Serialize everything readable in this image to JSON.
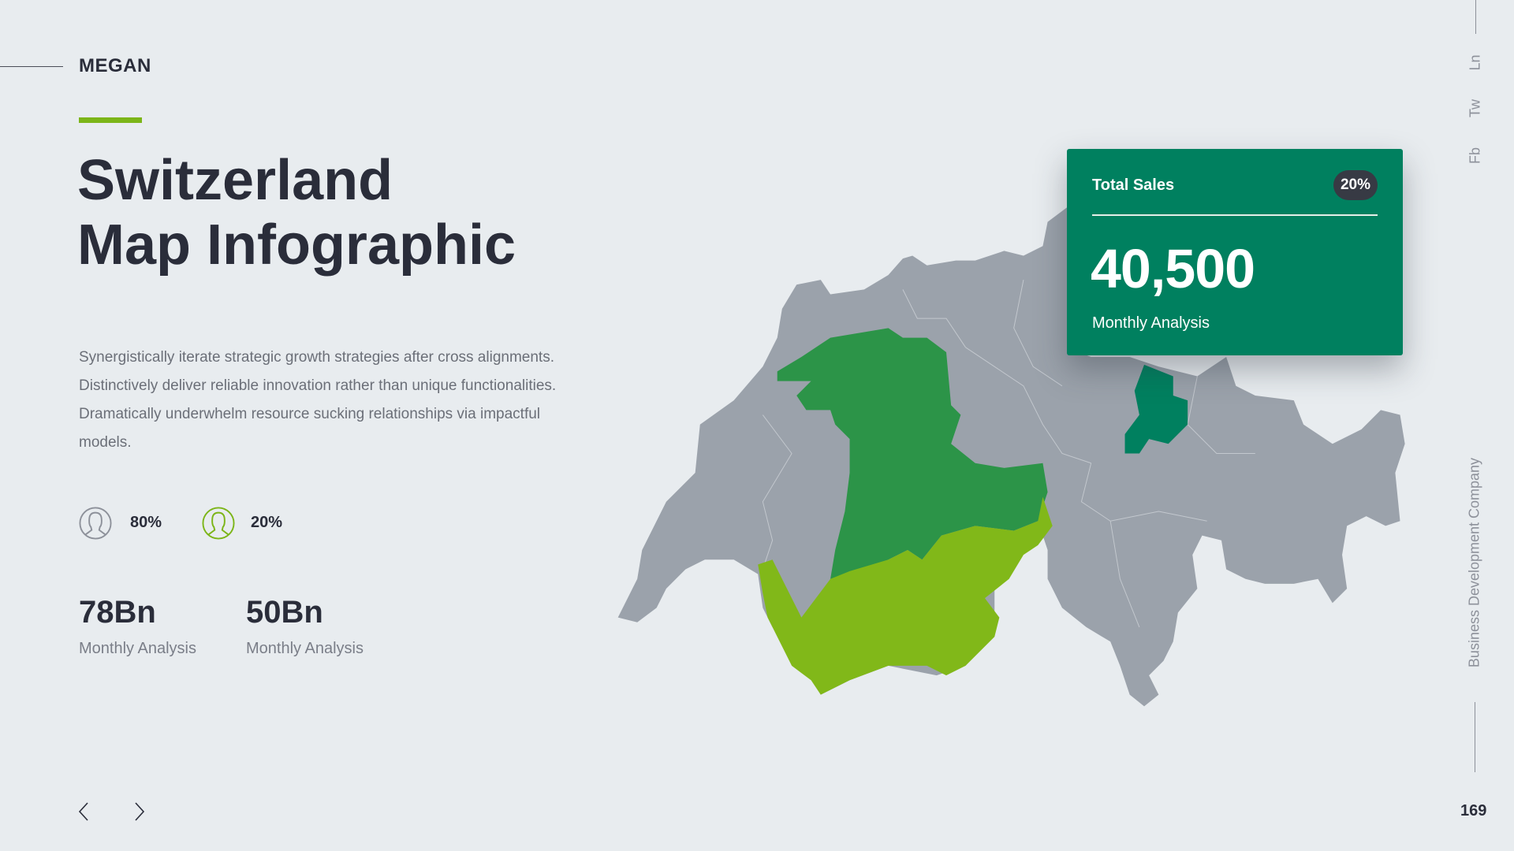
{
  "brand": "MEGAN",
  "title": {
    "line1": "Switzerland",
    "line2": "Map Infographic"
  },
  "paragraph": "Synergistically iterate strategic growth strategies after cross alignments. Distinctively deliver reliable innovation rather than unique functionalities. Dramatically underwhelm resource sucking relationships via impactful models.",
  "demographics": [
    {
      "icon": "user-icon",
      "value": "80%",
      "color": "#8d919a"
    },
    {
      "icon": "user-icon",
      "value": "20%",
      "color": "#7cb518"
    }
  ],
  "stats": [
    {
      "value": "78Bn",
      "label": "Monthly Analysis"
    },
    {
      "value": "50Bn",
      "label": "Monthly Analysis"
    }
  ],
  "nav": {
    "prev_icon": "chevron-left-icon",
    "next_icon": "chevron-right-icon"
  },
  "social": [
    "Ln",
    "Tw",
    "Fb"
  ],
  "company": "Business Development Company",
  "page_number": "169",
  "card": {
    "title": "Total Sales",
    "badge": "20%",
    "value": "40,500",
    "label": "Monthly Analysis"
  },
  "map": {
    "base_color": "#9ba2ab",
    "highlight_colors": {
      "primary": "#2c9448",
      "secondary": "#81b819",
      "tertiary": "#00805f"
    }
  }
}
